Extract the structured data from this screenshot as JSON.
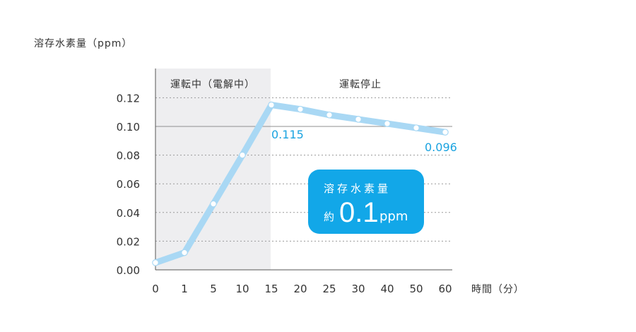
{
  "chart_data": {
    "type": "line",
    "ylabel": "溶存水素量（ppm）",
    "xlabel": "時間（分）",
    "categories": [
      "0",
      "1",
      "5",
      "10",
      "15",
      "20",
      "25",
      "30",
      "40",
      "50",
      "60"
    ],
    "values": [
      0.005,
      0.012,
      0.046,
      0.08,
      0.115,
      0.112,
      0.108,
      0.105,
      0.102,
      0.099,
      0.096
    ],
    "ylim": [
      0,
      0.12
    ],
    "yticks": [
      "0.00",
      "0.02",
      "0.04",
      "0.06",
      "0.08",
      "0.10",
      "0.12"
    ],
    "grid": true,
    "regions": [
      {
        "label": "運転中（電解中）",
        "from": "0",
        "to": "15",
        "shaded": true
      },
      {
        "label": "運転停止",
        "from": "15",
        "to": "60",
        "shaded": false
      }
    ],
    "annotations": [
      {
        "at": "15",
        "text": "0.115"
      },
      {
        "at": "60",
        "text": "0.096"
      }
    ],
    "callout": {
      "title": "溶存水素量",
      "prefix": "約",
      "value": "0.1",
      "unit": "ppm"
    },
    "colors": {
      "line": "#a9d8f4",
      "shade": "#eeeef0",
      "accent": "#1aa3e0",
      "callout": "#12a7e8",
      "grid": "#9a9a9a"
    }
  }
}
